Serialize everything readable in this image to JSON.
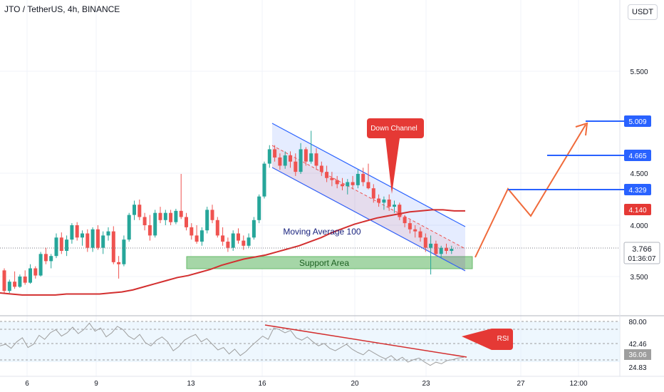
{
  "header": {
    "title": "JTO / TetherUS, 4h, BINANCE",
    "currency_button": "USDT"
  },
  "colors": {
    "up": "#26a69a",
    "down": "#ef5350",
    "ma": "#d32f2f",
    "channel": "#2962ff",
    "support": "#a5d6a7",
    "projection": "#f06a3a",
    "price_tag": "#2962ff",
    "ma_tag": "#e53935",
    "rsi_line": "#9e9e9e",
    "rsi_bg": "#e3f2fd"
  },
  "chart_data": {
    "type": "candlestick",
    "x_ticks": [
      "6",
      "9",
      "13",
      "16",
      "20",
      "23",
      "27",
      "12:00"
    ],
    "y_ticks": [
      "5.500",
      "4.500",
      "4.000",
      "3.500"
    ],
    "price_labels": [
      "5.009",
      "4.665",
      "4.329",
      "4.140",
      "3.766"
    ],
    "countdown": "01:36:07",
    "annotations": {
      "down_channel": "Down Channel",
      "moving_average": "Moving Average 100",
      "support_area": "Support Area",
      "rsi": "RSI"
    },
    "rsi_labels": [
      "80.00",
      "42.46",
      "36.06",
      "24.83"
    ],
    "candles": [
      [
        3.56,
        3.58,
        3.34,
        3.36
      ],
      [
        3.36,
        3.47,
        3.34,
        3.45
      ],
      [
        3.45,
        3.55,
        3.38,
        3.4
      ],
      [
        3.4,
        3.52,
        3.39,
        3.5
      ],
      [
        3.5,
        3.56,
        3.42,
        3.44
      ],
      [
        3.44,
        3.62,
        3.43,
        3.58
      ],
      [
        3.58,
        3.6,
        3.48,
        3.51
      ],
      [
        3.51,
        3.74,
        3.5,
        3.72
      ],
      [
        3.72,
        3.78,
        3.62,
        3.65
      ],
      [
        3.65,
        3.72,
        3.58,
        3.7
      ],
      [
        3.7,
        3.92,
        3.68,
        3.88
      ],
      [
        3.88,
        3.93,
        3.72,
        3.75
      ],
      [
        3.75,
        3.9,
        3.7,
        3.86
      ],
      [
        3.86,
        4.02,
        3.82,
        4.0
      ],
      [
        4.0,
        4.03,
        3.85,
        3.88
      ],
      [
        3.88,
        3.95,
        3.8,
        3.92
      ],
      [
        3.92,
        3.96,
        3.74,
        3.78
      ],
      [
        3.78,
        3.98,
        3.74,
        3.96
      ],
      [
        3.96,
        4.0,
        3.76,
        3.78
      ],
      [
        3.78,
        3.94,
        3.72,
        3.9
      ],
      [
        3.9,
        3.98,
        3.85,
        3.94
      ],
      [
        3.94,
        3.99,
        3.62,
        3.64
      ],
      [
        3.64,
        3.7,
        3.48,
        3.62
      ],
      [
        3.62,
        3.9,
        3.6,
        3.86
      ],
      [
        3.86,
        4.12,
        3.84,
        4.1
      ],
      [
        4.1,
        4.24,
        4.05,
        4.2
      ],
      [
        4.2,
        4.25,
        4.05,
        4.08
      ],
      [
        4.08,
        4.12,
        3.95,
        4.0
      ],
      [
        4.0,
        4.1,
        3.85,
        3.9
      ],
      [
        3.9,
        4.15,
        3.88,
        4.12
      ],
      [
        4.12,
        4.18,
        4.02,
        4.05
      ],
      [
        4.05,
        4.15,
        4.0,
        4.12
      ],
      [
        4.12,
        4.15,
        4.0,
        4.03
      ],
      [
        4.03,
        4.16,
        4.01,
        4.14
      ],
      [
        4.14,
        4.5,
        4.06,
        4.08
      ],
      [
        4.08,
        4.12,
        3.95,
        3.98
      ],
      [
        3.98,
        4.02,
        3.86,
        3.9
      ],
      [
        3.9,
        4.0,
        3.82,
        3.84
      ],
      [
        3.84,
        3.98,
        3.8,
        3.95
      ],
      [
        3.95,
        4.18,
        3.92,
        4.15
      ],
      [
        4.15,
        4.2,
        4.02,
        4.05
      ],
      [
        4.05,
        4.08,
        3.88,
        3.9
      ],
      [
        3.9,
        3.98,
        3.8,
        3.84
      ],
      [
        3.84,
        3.88,
        3.74,
        3.78
      ],
      [
        3.78,
        3.95,
        3.75,
        3.92
      ],
      [
        3.92,
        3.97,
        3.82,
        3.85
      ],
      [
        3.85,
        3.9,
        3.76,
        3.8
      ],
      [
        3.8,
        3.92,
        3.78,
        3.88
      ],
      [
        3.88,
        4.08,
        3.86,
        4.05
      ],
      [
        4.05,
        4.3,
        4.02,
        4.28
      ],
      [
        4.28,
        4.62,
        4.26,
        4.6
      ],
      [
        4.6,
        4.78,
        4.56,
        4.74
      ],
      [
        4.74,
        4.78,
        4.62,
        4.66
      ],
      [
        4.66,
        4.7,
        4.54,
        4.58
      ],
      [
        4.58,
        4.72,
        4.55,
        4.68
      ],
      [
        4.68,
        4.72,
        4.56,
        4.62
      ],
      [
        4.62,
        4.7,
        4.48,
        4.52
      ],
      [
        4.52,
        4.8,
        4.5,
        4.74
      ],
      [
        4.74,
        4.76,
        4.58,
        4.62
      ],
      [
        4.62,
        4.92,
        4.6,
        4.7
      ],
      [
        4.7,
        4.75,
        4.54,
        4.58
      ],
      [
        4.58,
        4.62,
        4.48,
        4.52
      ],
      [
        4.52,
        4.58,
        4.42,
        4.46
      ],
      [
        4.46,
        4.52,
        4.38,
        4.44
      ],
      [
        4.44,
        4.48,
        4.36,
        4.4
      ],
      [
        4.4,
        4.46,
        4.34,
        4.38
      ],
      [
        4.38,
        4.45,
        4.3,
        4.42
      ],
      [
        4.42,
        4.48,
        4.35,
        4.39
      ],
      [
        4.39,
        4.54,
        4.36,
        4.5
      ],
      [
        4.5,
        4.56,
        4.38,
        4.42
      ],
      [
        4.42,
        4.6,
        4.35,
        4.36
      ],
      [
        4.36,
        4.4,
        4.22,
        4.26
      ],
      [
        4.26,
        4.3,
        4.18,
        4.22
      ],
      [
        4.22,
        4.28,
        4.15,
        4.25
      ],
      [
        4.25,
        4.3,
        4.14,
        4.18
      ],
      [
        4.18,
        4.24,
        4.12,
        4.2
      ],
      [
        4.2,
        4.22,
        4.05,
        4.08
      ],
      [
        4.08,
        4.1,
        3.98,
        4.02
      ],
      [
        4.02,
        4.05,
        3.92,
        3.96
      ],
      [
        3.96,
        4.0,
        3.88,
        3.94
      ],
      [
        3.94,
        3.98,
        3.84,
        3.88
      ],
      [
        3.88,
        3.92,
        3.74,
        3.78
      ],
      [
        3.78,
        3.9,
        3.52,
        3.82
      ],
      [
        3.82,
        3.85,
        3.7,
        3.72
      ],
      [
        3.72,
        3.8,
        3.68,
        3.78
      ],
      [
        3.78,
        3.82,
        3.72,
        3.75
      ],
      [
        3.75,
        3.8,
        3.72,
        3.77
      ]
    ],
    "ma100": [
      3.34,
      3.33,
      3.32,
      3.32,
      3.32,
      3.32,
      3.33,
      3.33,
      3.33,
      3.33,
      3.34,
      3.35,
      3.37,
      3.4,
      3.43,
      3.46,
      3.49,
      3.51,
      3.54,
      3.57,
      3.61,
      3.64,
      3.67,
      3.69,
      3.71,
      3.74,
      3.77,
      3.8,
      3.84,
      3.88,
      3.93,
      3.97,
      4.01,
      4.04,
      4.07,
      4.09,
      4.11,
      4.13,
      4.14,
      4.15,
      4.15,
      4.14,
      4.14
    ],
    "rsi": [
      50,
      52,
      47,
      55,
      60,
      48,
      52,
      63,
      58,
      66,
      70,
      62,
      66,
      73,
      65,
      70,
      78,
      68,
      72,
      61,
      66,
      74,
      70,
      62,
      58,
      64,
      54,
      50,
      57,
      61,
      55,
      44,
      49,
      57,
      61,
      64,
      55,
      59,
      52,
      45,
      48,
      40,
      46,
      38,
      43,
      50,
      56,
      62,
      58,
      72,
      70,
      66,
      69,
      60,
      57,
      61,
      55,
      50,
      53,
      47,
      44,
      48,
      52,
      46,
      42,
      39,
      45,
      41,
      37,
      34,
      38,
      32,
      36,
      30,
      33,
      35,
      30,
      26,
      30,
      28,
      32,
      33,
      35,
      36
    ]
  }
}
